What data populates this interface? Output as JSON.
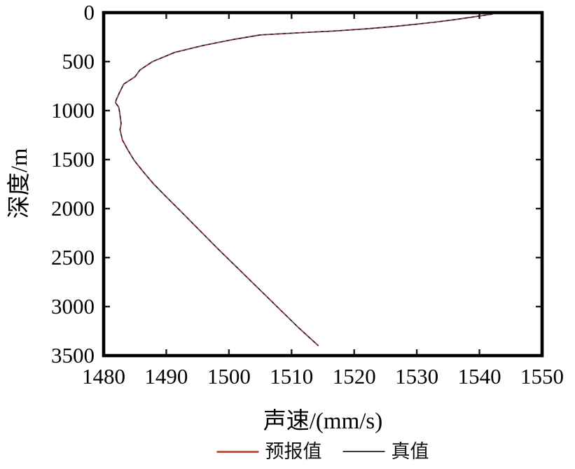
{
  "figure": {
    "background": "#ffffff",
    "plot_border_color": "#000000",
    "tick_color": "#1a1a1a"
  },
  "chart_data": {
    "type": "line",
    "title": "",
    "xlabel": "声速/(mm/s)",
    "ylabel": "深度/m",
    "xlim": [
      1480,
      1550
    ],
    "ylim": [
      0,
      3500
    ],
    "x_ticks": [
      1480,
      1490,
      1500,
      1510,
      1520,
      1530,
      1540,
      1550
    ],
    "y_ticks": [
      0,
      500,
      1000,
      1500,
      2000,
      2500,
      3000,
      3500
    ],
    "y_axis_inverted": true,
    "grid": false,
    "frame": "box-with-inward-ticks",
    "legend_position": "bottom-center",
    "series": [
      {
        "name": "预报值",
        "color": "#b05a48",
        "curve_color": "#a03a3c",
        "line_style": "solid",
        "x": [
          1542.6,
          1542.0,
          1540.5,
          1538.4,
          1536.0,
          1533.2,
          1530.0,
          1526.3,
          1522.0,
          1517.0,
          1511.5,
          1505.0,
          1500.4,
          1495.9,
          1491.4,
          1487.8,
          1485.8,
          1485.0,
          1483.2,
          1482.5,
          1482.0,
          1481.9,
          1482.4,
          1482.5,
          1482.7,
          1482.8,
          1482.6,
          1482.8,
          1483.0,
          1483.8,
          1484.9,
          1486.4,
          1488.0,
          1490.0,
          1492.2,
          1495.3,
          1498.4,
          1501.6,
          1504.8,
          1508.0,
          1511.2,
          1514.3
        ],
        "y": [
          0,
          15,
          30,
          50,
          72,
          95,
          118,
          142,
          165,
          187,
          205,
          228,
          278,
          335,
          405,
          500,
          585,
          655,
          730,
          820,
          890,
          920,
          965,
          1000,
          1085,
          1135,
          1195,
          1245,
          1300,
          1395,
          1510,
          1630,
          1750,
          1880,
          2020,
          2220,
          2420,
          2620,
          2820,
          3020,
          3220,
          3400
        ]
      },
      {
        "name": "真值",
        "color": "#3c3c3c",
        "curve_color": "#141414",
        "line_style": "solid",
        "x": [
          1542.6,
          1542.0,
          1540.5,
          1538.4,
          1536.0,
          1533.2,
          1530.0,
          1526.3,
          1522.0,
          1517.0,
          1511.5,
          1505.0,
          1500.4,
          1495.9,
          1491.4,
          1487.8,
          1485.8,
          1485.0,
          1483.2,
          1482.5,
          1482.0,
          1481.9,
          1482.4,
          1482.5,
          1482.7,
          1482.8,
          1482.6,
          1482.8,
          1483.0,
          1483.8,
          1484.9,
          1486.4,
          1488.0,
          1490.0,
          1492.2,
          1495.3,
          1498.4,
          1501.6,
          1504.8,
          1508.0,
          1511.2,
          1514.3
        ],
        "y": [
          0,
          15,
          30,
          50,
          72,
          95,
          118,
          142,
          165,
          187,
          205,
          228,
          278,
          335,
          405,
          500,
          585,
          655,
          730,
          820,
          890,
          920,
          965,
          1000,
          1085,
          1135,
          1195,
          1245,
          1300,
          1395,
          1510,
          1630,
          1750,
          1880,
          2020,
          2220,
          2420,
          2620,
          2820,
          3020,
          3220,
          3400
        ]
      }
    ]
  }
}
